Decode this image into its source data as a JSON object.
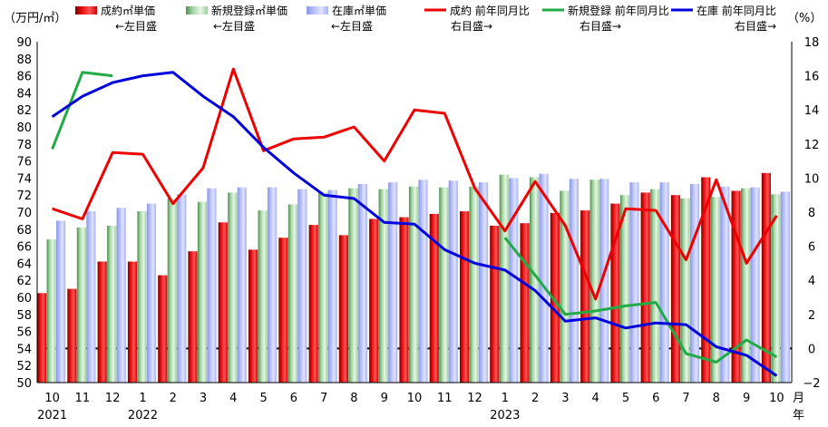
{
  "chart_data": {
    "type": "bar",
    "categories": [
      "10",
      "11",
      "12",
      "1",
      "2",
      "3",
      "4",
      "5",
      "6",
      "7",
      "8",
      "9",
      "10",
      "11",
      "12",
      "1",
      "2",
      "3",
      "4",
      "5",
      "6",
      "7",
      "8",
      "9",
      "10"
    ],
    "year_labels": [
      {
        "index": 0,
        "label": "2021"
      },
      {
        "index": 3,
        "label": "2022"
      },
      {
        "index": 15,
        "label": "2023"
      }
    ],
    "month_unit": "月",
    "year_unit": "年",
    "left_axis": {
      "unit": "（万円/㎡）",
      "min": 50,
      "max": 90,
      "step": 2
    },
    "right_axis": {
      "unit": "（%）",
      "min": -2,
      "max": 18,
      "step": 2,
      "tick_labels": [
        "−2",
        "0",
        "2",
        "4",
        "6",
        "8",
        "10",
        "12",
        "14",
        "16",
        "18"
      ]
    },
    "reference_line": {
      "axis": "right",
      "value": 0
    },
    "legend": [
      {
        "name": "成約㎡単価",
        "sub": "←左目盛",
        "kind": "bar",
        "series": 0
      },
      {
        "name": "新規登録㎡単価",
        "sub": "←左目盛",
        "kind": "bar",
        "series": 1
      },
      {
        "name": "在庫㎡単価",
        "sub": "←左目盛",
        "kind": "bar",
        "series": 2
      },
      {
        "name": "成約 前年同月比",
        "sub": "右目盛→",
        "kind": "line",
        "series": 3
      },
      {
        "name": "新規登録 前年同月比",
        "sub": "右目盛→",
        "kind": "line",
        "series": 4
      },
      {
        "name": "在庫 前年同月比",
        "sub": "右目盛→",
        "kind": "line",
        "series": 5
      }
    ],
    "series": [
      {
        "name": "成約㎡単価",
        "axis": "left",
        "kind": "bar",
        "color": "#dd0000",
        "values": [
          60.5,
          61.0,
          64.2,
          64.2,
          62.6,
          65.4,
          68.8,
          65.6,
          67.0,
          68.5,
          67.3,
          69.2,
          69.4,
          69.8,
          70.1,
          68.4,
          68.7,
          69.9,
          70.2,
          71.0,
          72.3,
          72.0,
          74.1,
          72.5,
          74.6
        ]
      },
      {
        "name": "新規登録㎡単価",
        "axis": "left",
        "kind": "bar",
        "color": "#8ec88e",
        "values": [
          66.8,
          68.2,
          68.4,
          70.1,
          71.6,
          71.2,
          72.3,
          70.2,
          70.9,
          72.3,
          72.8,
          72.7,
          73.0,
          72.9,
          73.0,
          74.4,
          74.1,
          72.5,
          73.8,
          72.0,
          72.7,
          71.6,
          71.8,
          72.8,
          72.1
        ]
      },
      {
        "name": "在庫㎡単価",
        "axis": "left",
        "kind": "bar",
        "color": "#aab4f0",
        "values": [
          69.0,
          70.1,
          70.5,
          71.0,
          72.1,
          72.8,
          72.9,
          72.9,
          72.7,
          72.6,
          73.3,
          73.5,
          73.8,
          73.7,
          73.5,
          74.0,
          74.5,
          73.9,
          73.9,
          73.5,
          73.5,
          73.3,
          73.0,
          72.9,
          72.4
        ]
      },
      {
        "name": "成約 前年同月比",
        "axis": "right",
        "kind": "line",
        "color": "#ee0000",
        "values": [
          8.2,
          7.6,
          11.5,
          11.4,
          8.5,
          10.6,
          16.4,
          11.6,
          12.3,
          12.4,
          13.0,
          11.0,
          14.0,
          13.8,
          9.4,
          6.9,
          9.8,
          7.2,
          2.9,
          8.2,
          8.1,
          5.2,
          9.9,
          5.0,
          7.8
        ]
      },
      {
        "name": "新規登録 前年同月比",
        "axis": "right",
        "kind": "line",
        "color": "#22aa44",
        "values": [
          11.7,
          16.2,
          16.0,
          null,
          null,
          null,
          null,
          null,
          null,
          null,
          null,
          null,
          null,
          null,
          null,
          6.5,
          4.3,
          2.0,
          2.2,
          2.5,
          2.7,
          -0.3,
          -0.8,
          0.5,
          -0.5
        ]
      },
      {
        "name": "在庫 前年同月比",
        "axis": "right",
        "kind": "line",
        "color": "#0000dd",
        "values": [
          13.6,
          14.8,
          15.6,
          16.0,
          16.2,
          14.8,
          13.6,
          11.8,
          10.3,
          9.0,
          8.8,
          7.4,
          7.3,
          5.8,
          5.0,
          4.6,
          3.4,
          1.6,
          1.8,
          1.2,
          1.5,
          1.4,
          0.1,
          -0.4,
          -1.6
        ]
      }
    ]
  }
}
